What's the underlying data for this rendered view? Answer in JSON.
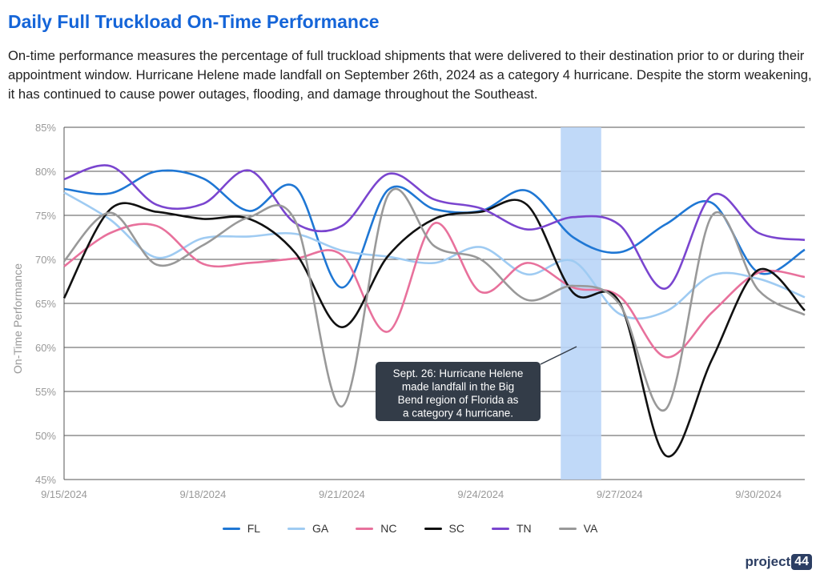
{
  "title": "Daily Full Truckload On-Time Performance",
  "description": "On-time performance measures the percentage of full truckload shipments that were delivered to their destination prior to or during their appointment window. Hurricane Helene made landfall on September 26th, 2024 as a category 4 hurricane. Despite the storm weakening, it has continued to cause power outages, flooding, and damage throughout the Southeast.",
  "logo": {
    "text": "project",
    "badge": "44"
  },
  "chart_data": {
    "type": "line",
    "ylabel": "On-Time Performance",
    "ylim": [
      45,
      85
    ],
    "y_ticks": [
      "45%",
      "50%",
      "55%",
      "60%",
      "65%",
      "70%",
      "75%",
      "80%",
      "85%"
    ],
    "x_range": [
      "9/15/2024",
      "10/1/2024"
    ],
    "x_ticks": [
      "9/15/2024",
      "9/18/2024",
      "9/21/2024",
      "9/24/2024",
      "9/27/2024",
      "9/30/2024"
    ],
    "grid": "horizontal",
    "legend_position": "bottom",
    "highlight": {
      "from": "9/26/2024",
      "to": "9/26/2024",
      "color": "#b9d5f7"
    },
    "annotation": "Sept. 26: Hurricane Helene made landfall in the Big Bend region of Florida as a category 4 hurricane.",
    "dates": [
      "9/15/2024",
      "9/16/2024",
      "9/17/2024",
      "9/18/2024",
      "9/19/2024",
      "9/20/2024",
      "9/21/2024",
      "9/22/2024",
      "9/23/2024",
      "9/24/2024",
      "9/25/2024",
      "9/26/2024",
      "9/27/2024",
      "9/28/2024",
      "9/29/2024",
      "9/30/2024",
      "10/1/2024"
    ],
    "series": [
      {
        "name": "FL",
        "color": "#1f77d4",
        "values": [
          78.0,
          77.5,
          80.0,
          79.2,
          75.5,
          78.2,
          66.8,
          77.9,
          75.7,
          75.5,
          77.8,
          72.5,
          70.8,
          74.0,
          76.4,
          68.5,
          71.1
        ]
      },
      {
        "name": "GA",
        "color": "#9fcbf2",
        "values": [
          77.6,
          74.5,
          70.2,
          72.4,
          72.6,
          72.9,
          71.0,
          70.3,
          69.6,
          71.4,
          68.3,
          69.8,
          63.8,
          64.1,
          68.2,
          67.8,
          65.7
        ]
      },
      {
        "name": "NC",
        "color": "#e8719c",
        "values": [
          69.2,
          73.0,
          73.8,
          69.5,
          69.6,
          70.1,
          70.5,
          61.8,
          74.1,
          66.3,
          69.6,
          66.8,
          65.8,
          58.9,
          64.0,
          68.5,
          68.0
        ]
      },
      {
        "name": "SC",
        "color": "#111111",
        "values": [
          65.6,
          75.7,
          75.4,
          74.6,
          74.6,
          70.7,
          62.3,
          70.4,
          74.6,
          75.4,
          76.2,
          66.2,
          65.1,
          47.7,
          58.7,
          68.8,
          64.2
        ]
      },
      {
        "name": "TN",
        "color": "#7a45cf",
        "values": [
          79.1,
          80.6,
          76.2,
          76.3,
          80.1,
          74.1,
          73.8,
          79.7,
          76.8,
          75.8,
          73.4,
          74.8,
          73.9,
          66.7,
          77.3,
          73.0,
          72.2
        ]
      },
      {
        "name": "VA",
        "color": "#999999",
        "values": [
          69.8,
          75.3,
          69.4,
          71.6,
          74.8,
          74.3,
          53.3,
          77.3,
          71.5,
          70.0,
          65.4,
          67.0,
          64.9,
          53.0,
          75.0,
          66.5,
          63.7
        ]
      }
    ]
  }
}
